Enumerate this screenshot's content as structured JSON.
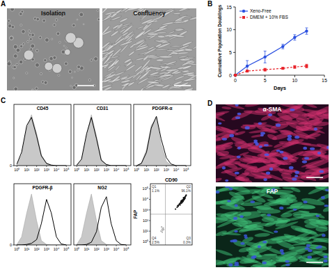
{
  "panels": {
    "A": {
      "label": "A",
      "images": [
        "Isolation",
        "Confluency"
      ]
    },
    "B": {
      "label": "B"
    },
    "C": {
      "label": "C"
    },
    "D": {
      "label": "D",
      "images": [
        "α-SMA",
        "FAP"
      ]
    }
  },
  "chart_data": [
    {
      "type": "line",
      "xlabel": "Days",
      "ylabel": "Cumulative Population Doublings",
      "x": [
        0,
        2,
        5,
        8,
        10,
        12
      ],
      "series": [
        {
          "name": "Xeno-Free",
          "color": "#2b50e0",
          "marker": "circle",
          "line_style": "solid",
          "values": [
            0,
            2,
            4,
            6.3,
            8.3,
            9.7
          ],
          "errors": [
            0,
            1.2,
            1.3,
            0.5,
            0.6,
            0.7
          ]
        },
        {
          "name": "DMEM + 10% FBS",
          "color": "#e8232a",
          "marker": "square",
          "line_style": "dashed",
          "values": [
            0,
            0.9,
            1.2,
            1.5,
            1.8,
            2.0
          ],
          "errors": [
            0,
            0.2,
            0.3,
            0.2,
            0.3,
            0.4
          ]
        }
      ],
      "xlim": [
        0,
        15
      ],
      "ylim": [
        0,
        15
      ],
      "xticks": [
        0,
        5,
        10,
        15
      ],
      "yticks": [
        0,
        5,
        10,
        15
      ],
      "legend": "upper left"
    },
    {
      "type": "area",
      "title": "CD45",
      "log": "x",
      "x": [
        1,
        3,
        10,
        30,
        100,
        300,
        1000,
        3000,
        10000,
        30000,
        100000
      ],
      "series": [
        {
          "type": "area",
          "color": "#c8c8c8",
          "values": [
            2,
            20,
            70,
            95,
            60,
            20,
            5,
            1,
            0,
            0,
            0
          ]
        },
        {
          "type": "line",
          "color": "#000000",
          "values": [
            3,
            25,
            75,
            90,
            55,
            18,
            4,
            1,
            0,
            0,
            0
          ]
        }
      ],
      "xlim": [
        0.5,
        300000
      ],
      "ylim": [
        0,
        100
      ],
      "yticks": [
        0
      ],
      "xticks": [
        {
          "value": 1,
          "label": "10⁰"
        },
        {
          "value": 10,
          "label": "10¹"
        },
        {
          "value": 100,
          "label": "10²"
        },
        {
          "value": 1000,
          "label": "10³"
        },
        {
          "value": 10000,
          "label": "10⁴"
        },
        {
          "value": 100000,
          "label": "10⁵"
        }
      ]
    },
    {
      "type": "area",
      "title": "CD31",
      "log": "x",
      "tick_labels": "x",
      "x": [
        1,
        3,
        10,
        30,
        100,
        300,
        1000,
        3000,
        10000,
        30000,
        100000
      ],
      "series": [
        {
          "type": "area",
          "color": "#c8c8c8",
          "values": [
            1,
            10,
            55,
            95,
            55,
            12,
            2,
            0,
            0,
            0,
            0
          ]
        },
        {
          "type": "line",
          "color": "#000000",
          "values": [
            1,
            12,
            60,
            90,
            50,
            10,
            2,
            0,
            0,
            0,
            0
          ]
        }
      ],
      "xlim": [
        0.5,
        300000
      ],
      "ylim": [
        0,
        100
      ],
      "xticks": [
        {
          "value": 1,
          "label": "10⁰"
        },
        {
          "value": 10,
          "label": "10¹"
        },
        {
          "value": 100,
          "label": "10²"
        },
        {
          "value": 1000,
          "label": "10³"
        },
        {
          "value": 10000,
          "label": "10⁴"
        },
        {
          "value": 100000,
          "label": "10⁵"
        }
      ]
    },
    {
      "type": "area",
      "title": "PDGFR-α",
      "log": "x",
      "tick_labels": "x",
      "x": [
        1,
        3,
        10,
        30,
        100,
        300,
        1000,
        3000,
        10000,
        30000,
        100000
      ],
      "series": [
        {
          "type": "area",
          "color": "#c8c8c8",
          "values": [
            0,
            5,
            30,
            75,
            90,
            40,
            8,
            1,
            0,
            0,
            0
          ]
        },
        {
          "type": "line",
          "color": "#000000",
          "values": [
            0,
            4,
            25,
            70,
            92,
            50,
            15,
            3,
            0,
            0,
            0
          ]
        }
      ],
      "xlim": [
        0.5,
        300000
      ],
      "ylim": [
        0,
        100
      ],
      "xticks": [
        {
          "value": 1,
          "label": "10⁰"
        },
        {
          "value": 10,
          "label": "10¹"
        },
        {
          "value": 100,
          "label": "10²"
        },
        {
          "value": 1000,
          "label": "10³"
        },
        {
          "value": 10000,
          "label": "10⁴"
        },
        {
          "value": 100000,
          "label": "10⁵"
        }
      ]
    },
    {
      "type": "area",
      "title": "PDGFR-β",
      "log": "x",
      "x": [
        1,
        3,
        10,
        30,
        100,
        300,
        1000,
        3000,
        10000,
        30000,
        100000
      ],
      "series": [
        {
          "type": "area",
          "color": "#c8c8c8",
          "values": [
            1,
            15,
            60,
            95,
            45,
            8,
            1,
            0,
            0,
            0,
            0
          ]
        },
        {
          "type": "line",
          "color": "#000000",
          "values": [
            0,
            0,
            1,
            3,
            10,
            40,
            85,
            60,
            15,
            2,
            0
          ]
        }
      ],
      "xlim": [
        0.5,
        300000
      ],
      "ylim": [
        0,
        100
      ],
      "yticks": [
        0
      ],
      "xticks": [
        {
          "value": 1,
          "label": "10⁰"
        },
        {
          "value": 10,
          "label": "10¹"
        },
        {
          "value": 100,
          "label": "10²"
        },
        {
          "value": 1000,
          "label": "10³"
        },
        {
          "value": 10000,
          "label": "10⁴"
        },
        {
          "value": 100000,
          "label": "10⁵"
        }
      ]
    },
    {
      "type": "area",
      "title": "NG2",
      "log": "x",
      "tick_labels": "x",
      "x": [
        1,
        3,
        10,
        30,
        100,
        300,
        1000,
        3000,
        10000,
        30000,
        100000
      ],
      "series": [
        {
          "type": "area",
          "color": "#c8c8c8",
          "values": [
            1,
            15,
            60,
            95,
            45,
            8,
            1,
            0,
            0,
            0,
            0
          ]
        },
        {
          "type": "line",
          "color": "#000000",
          "values": [
            0,
            0,
            1,
            5,
            25,
            70,
            90,
            40,
            8,
            1,
            0
          ]
        }
      ],
      "xlim": [
        0.5,
        300000
      ],
      "ylim": [
        0,
        100
      ],
      "xticks": [
        {
          "value": 1,
          "label": "10⁰"
        },
        {
          "value": 10,
          "label": "10¹"
        },
        {
          "value": 100,
          "label": "10²"
        },
        {
          "value": 1000,
          "label": "10³"
        },
        {
          "value": 10000,
          "label": "10⁴"
        },
        {
          "value": 100000,
          "label": "10⁵"
        }
      ]
    },
    {
      "type": "scatter",
      "title": "CD90",
      "ylabel": "FAP",
      "log": true,
      "tick_labels": "y",
      "series": [
        {
          "color": "#111111",
          "x": [
            1500,
            2500,
            3000,
            4000,
            5000,
            6000,
            7000,
            8000,
            9000,
            10000,
            11000,
            12000,
            14000,
            15000,
            16000,
            18000,
            20000,
            22000,
            25000,
            28000,
            30000,
            35000,
            40000,
            45000,
            3500,
            6500,
            9500,
            13000,
            17000,
            21000,
            26000,
            32000,
            8500,
            11500,
            19000,
            24000
          ],
          "values": [
            1200,
            1800,
            2500,
            2800,
            3500,
            4000,
            4500,
            5000,
            5500,
            6000,
            6500,
            7000,
            7500,
            8000,
            9000,
            10000,
            11000,
            12000,
            14000,
            15000,
            17000,
            19000,
            22000,
            25000,
            2200,
            3000,
            4200,
            5200,
            6500,
            8500,
            10500,
            13000,
            6800,
            8200,
            14500,
            12500
          ]
        },
        {
          "color": "#b0b0b0",
          "x": [
            15,
            20,
            25,
            30,
            18,
            35,
            22,
            28
          ],
          "values": [
            10,
            15,
            12,
            20,
            25,
            14,
            8,
            18
          ]
        }
      ],
      "gates": {
        "x": 60,
        "y": 400
      },
      "quadrants": [
        {
          "name": "Q1",
          "value": 1.1,
          "label": "1.1%"
        },
        {
          "name": "Q2",
          "value": 96.1,
          "label": "96.1%"
        },
        {
          "name": "Q3",
          "value": 0.3,
          "label": "0.3%"
        },
        {
          "name": "Q4",
          "value": 2.5,
          "label": "2.5%"
        }
      ],
      "xlim": [
        0.5,
        300000
      ],
      "ylim": [
        0.5,
        300000
      ],
      "yticks": [
        {
          "value": 1,
          "label": "10⁰"
        },
        {
          "value": 10,
          "label": "10¹"
        },
        {
          "value": 100,
          "label": "10²"
        },
        {
          "value": 1000,
          "label": "10³"
        },
        {
          "value": 10000,
          "label": "10⁴"
        },
        {
          "value": 100000,
          "label": "10⁵"
        }
      ]
    }
  ]
}
